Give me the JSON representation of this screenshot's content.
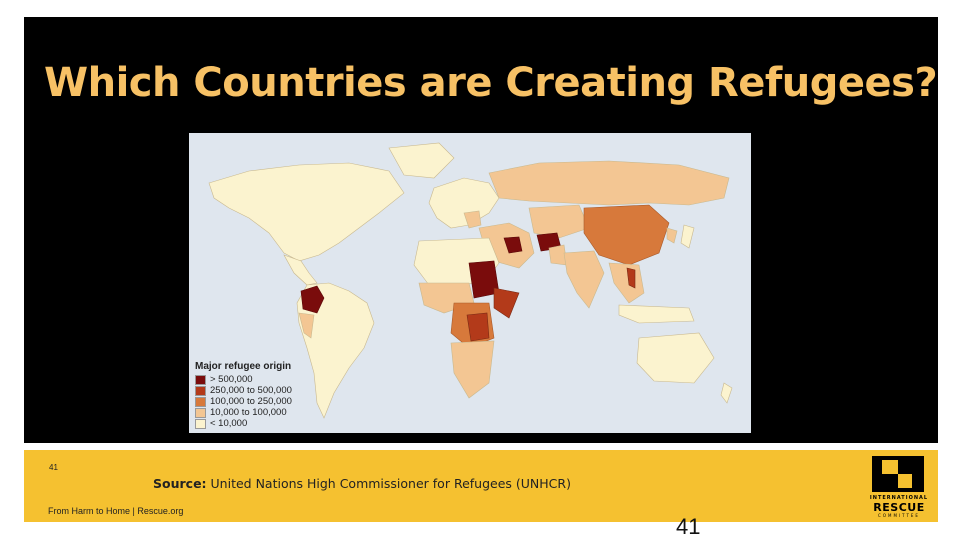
{
  "slide": {
    "title": "Which Countries are Creating Refugees?",
    "page_small": "41",
    "page_number": "41"
  },
  "map": {
    "legend_title": "Major refugee origin",
    "legend": [
      {
        "label": "> 500,000",
        "color": "#7a0c0c"
      },
      {
        "label": "250,000 to 500,000",
        "color": "#b33a1a"
      },
      {
        "label": "100,000 to 250,000",
        "color": "#d7793b"
      },
      {
        "label": "10,000 to 100,000",
        "color": "#f3c693"
      },
      {
        "label": "< 10,000",
        "color": "#fbf3cf"
      }
    ]
  },
  "footer": {
    "source_label": "Source:",
    "source_text": " United Nations High Commissioner for Refugees (UNHCR)",
    "credit": "From Harm to Home | Rescue.org"
  },
  "logo": {
    "org": "INTERNATIONAL",
    "name": "RESCUE",
    "sub": "COMMITTEE"
  }
}
